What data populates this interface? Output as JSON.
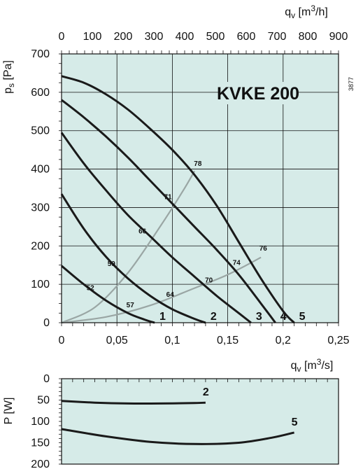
{
  "chart_data": [
    {
      "type": "line",
      "title": "KVKE 200",
      "figure_code": "3877",
      "xlabel": "qv [m3/s]",
      "xlabel_parts": {
        "symbol": "q",
        "sub": "v",
        "unit_pre": "[m",
        "sup": "3",
        "unit_post": "/s]"
      },
      "x2label": "qv [m3/h]",
      "x2label_parts": {
        "symbol": "q",
        "sub": "v",
        "unit_pre": "[m",
        "sup": "3",
        "unit_post": "/h]"
      },
      "ylabel": "ps [Pa]",
      "ylabel_parts": {
        "symbol": "p",
        "sub": "s",
        "unit": "[Pa]"
      },
      "xlim": [
        0,
        0.25
      ],
      "ylim": [
        0,
        700
      ],
      "x2lim": [
        0,
        900
      ],
      "x_ticks": [
        0,
        0.05,
        0.1,
        0.15,
        0.2,
        0.25
      ],
      "x_tick_labels": [
        "0",
        "0,05",
        "0,1",
        "0,15",
        "0,2",
        "0,25"
      ],
      "x2_ticks": [
        0,
        100,
        200,
        300,
        400,
        500,
        600,
        700,
        800,
        900
      ],
      "x2_tick_labels": [
        "0",
        "100",
        "200",
        "300",
        "400",
        "500",
        "600",
        "700",
        "800",
        "900"
      ],
      "y_ticks": [
        0,
        100,
        200,
        300,
        400,
        500,
        600,
        700
      ],
      "y_tick_labels": [
        "0",
        "100",
        "200",
        "300",
        "400",
        "500",
        "600",
        "700"
      ],
      "grid": true,
      "background": "#d6ebe8",
      "series": [
        {
          "name": "1",
          "x": [
            0,
            0.02,
            0.04,
            0.06,
            0.075,
            0.084
          ],
          "y": [
            148,
            100,
            58,
            25,
            8,
            0
          ]
        },
        {
          "name": "2",
          "x": [
            0,
            0.02,
            0.04,
            0.06,
            0.08,
            0.1,
            0.12,
            0.13
          ],
          "y": [
            335,
            245,
            172,
            115,
            70,
            35,
            10,
            0
          ]
        },
        {
          "name": "3",
          "x": [
            0,
            0.02,
            0.04,
            0.06,
            0.08,
            0.1,
            0.12,
            0.14,
            0.16,
            0.171
          ],
          "y": [
            495,
            415,
            345,
            280,
            225,
            170,
            120,
            70,
            25,
            0
          ]
        },
        {
          "name": "4",
          "x": [
            0,
            0.02,
            0.04,
            0.06,
            0.08,
            0.1,
            0.12,
            0.14,
            0.16,
            0.18,
            0.193
          ],
          "y": [
            580,
            535,
            485,
            430,
            370,
            310,
            250,
            190,
            125,
            50,
            0
          ]
        },
        {
          "name": "5",
          "x": [
            0,
            0.02,
            0.04,
            0.06,
            0.08,
            0.1,
            0.12,
            0.14,
            0.16,
            0.18,
            0.2,
            0.21
          ],
          "y": [
            642,
            625,
            595,
            555,
            505,
            450,
            385,
            305,
            210,
            115,
            30,
            0
          ]
        }
      ],
      "efficiency_lines": [
        {
          "x": [
            0,
            0.03,
            0.06,
            0.09,
            0.11,
            0.12
          ],
          "y": [
            0,
            40,
            130,
            255,
            345,
            395
          ]
        },
        {
          "x": [
            0,
            0.04,
            0.08,
            0.12,
            0.15,
            0.18
          ],
          "y": [
            0,
            15,
            45,
            90,
            125,
            170
          ]
        }
      ],
      "efficiency_labels": [
        {
          "text": "52",
          "x": 0.026,
          "y": 85
        },
        {
          "text": "57",
          "x": 0.062,
          "y": 40
        },
        {
          "text": "59",
          "x": 0.045,
          "y": 148
        },
        {
          "text": "64",
          "x": 0.098,
          "y": 67
        },
        {
          "text": "66",
          "x": 0.073,
          "y": 232
        },
        {
          "text": "70",
          "x": 0.133,
          "y": 105
        },
        {
          "text": "71",
          "x": 0.096,
          "y": 322
        },
        {
          "text": "74",
          "x": 0.158,
          "y": 150
        },
        {
          "text": "76",
          "x": 0.182,
          "y": 188
        },
        {
          "text": "78",
          "x": 0.123,
          "y": 408
        }
      ]
    },
    {
      "type": "line",
      "ylabel": "P [W]",
      "xlim": [
        0,
        0.25
      ],
      "ylim": [
        0,
        200
      ],
      "y_inverted": true,
      "y_ticks": [
        0,
        50,
        100,
        150,
        200
      ],
      "y_tick_labels": [
        "0",
        "50",
        "100",
        "150",
        "200"
      ],
      "grid": false,
      "background": "#d6ebe8",
      "series": [
        {
          "name": "2",
          "x": [
            0,
            0.03,
            0.06,
            0.09,
            0.12,
            0.13
          ],
          "y": [
            52,
            56,
            58,
            58,
            57,
            56
          ]
        },
        {
          "name": "5",
          "x": [
            0,
            0.04,
            0.08,
            0.12,
            0.16,
            0.19,
            0.21
          ],
          "y": [
            118,
            135,
            148,
            153,
            150,
            138,
            126
          ]
        }
      ]
    }
  ]
}
